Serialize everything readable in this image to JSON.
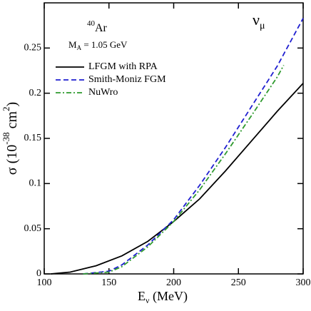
{
  "chart_data": {
    "type": "line",
    "xlabel": [
      "E",
      "ν",
      " (MeV)"
    ],
    "ylabel": [
      "σ (10",
      "-38",
      " cm",
      "2",
      ")"
    ],
    "annotations": {
      "isotope": [
        "40",
        "Ar"
      ],
      "mass": [
        "M",
        "A",
        " = 1.05 GeV"
      ],
      "neutrino": [
        "ν",
        "μ"
      ]
    },
    "xlim": [
      100,
      300
    ],
    "ylim": [
      0,
      0.3
    ],
    "xticks": [
      100,
      150,
      200,
      250,
      300
    ],
    "yticks": [
      0,
      0.05,
      0.1,
      0.15,
      0.2,
      0.25
    ],
    "legend": "upper left",
    "series": [
      {
        "name": "LFGM with RPA",
        "color": "#000000",
        "dash": "solid",
        "x": [
          105,
          120,
          140,
          160,
          180,
          200,
          220,
          240,
          260,
          280,
          300
        ],
        "values": [
          0,
          0.002,
          0.009,
          0.02,
          0.036,
          0.058,
          0.083,
          0.114,
          0.147,
          0.18,
          0.211
        ]
      },
      {
        "name": "Smith-Moniz FGM",
        "color": "#1f1fd0",
        "dash": "dashed",
        "x": [
          130,
          150,
          160,
          180,
          200,
          220,
          240,
          260,
          280,
          300
        ],
        "values": [
          0,
          0.003,
          0.01,
          0.032,
          0.06,
          0.098,
          0.14,
          0.185,
          0.23,
          0.283
        ]
      },
      {
        "name": "NuWro",
        "color": "#2e9a2e",
        "dash": "dashdot",
        "x": [
          130,
          150,
          160,
          180,
          200,
          220,
          240,
          260,
          280,
          285
        ],
        "values": [
          0,
          0.002,
          0.008,
          0.03,
          0.058,
          0.093,
          0.133,
          0.175,
          0.218,
          0.231
        ]
      }
    ]
  }
}
